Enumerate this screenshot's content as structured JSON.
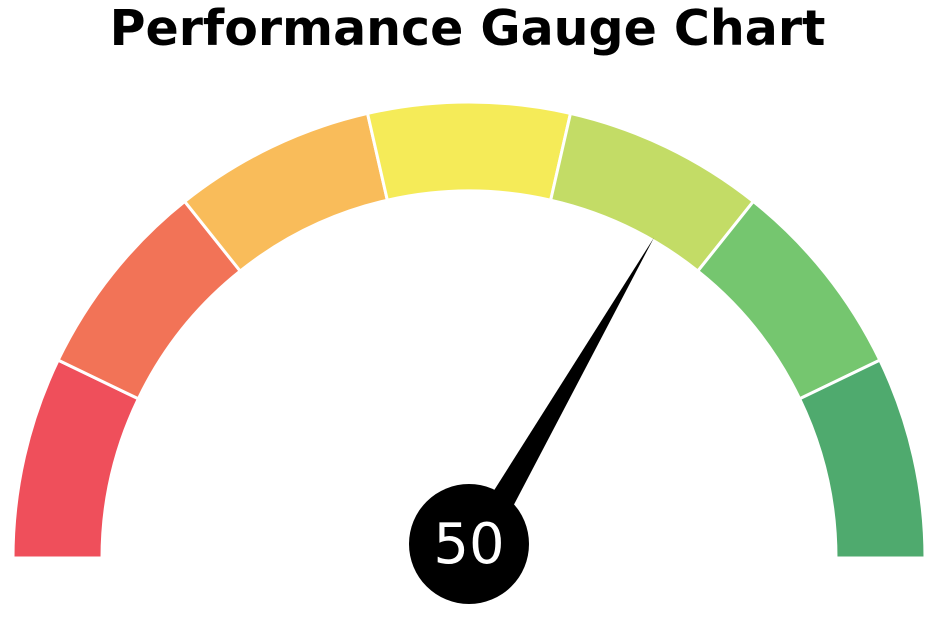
{
  "chart_data": {
    "type": "gauge",
    "title": "Performance Gauge Chart",
    "value": 50,
    "value_label": "50",
    "segments": [
      {
        "color": "#EF4F5B"
      },
      {
        "color": "#F27357"
      },
      {
        "color": "#F9BC5A"
      },
      {
        "color": "#F5EB58"
      },
      {
        "color": "#C3DC66"
      },
      {
        "color": "#75C66F"
      },
      {
        "color": "#4FAA6E"
      }
    ],
    "needle_color": "#000000",
    "value_text_color": "#ffffff"
  }
}
